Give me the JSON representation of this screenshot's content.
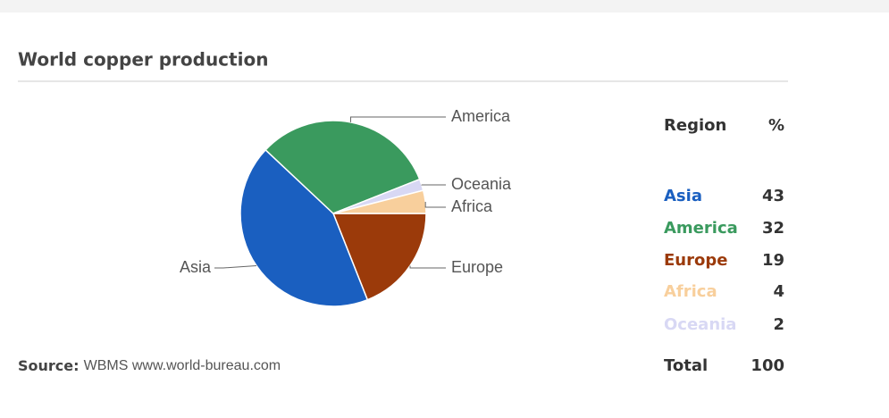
{
  "chart_data": {
    "type": "pie",
    "title": "World copper production",
    "categories": [
      "Asia",
      "America",
      "Europe",
      "Africa",
      "Oceania"
    ],
    "values": [
      43,
      32,
      19,
      4,
      2
    ],
    "colors": [
      "#1a5fc0",
      "#3a9a5e",
      "#9b3a0a",
      "#f8cf9c",
      "#d8d8f4"
    ],
    "table_header": [
      "Region",
      "%"
    ],
    "total_label": "Total",
    "total": 100,
    "source_label": "Source:",
    "source": "WBMS www.world-bureau.com"
  }
}
